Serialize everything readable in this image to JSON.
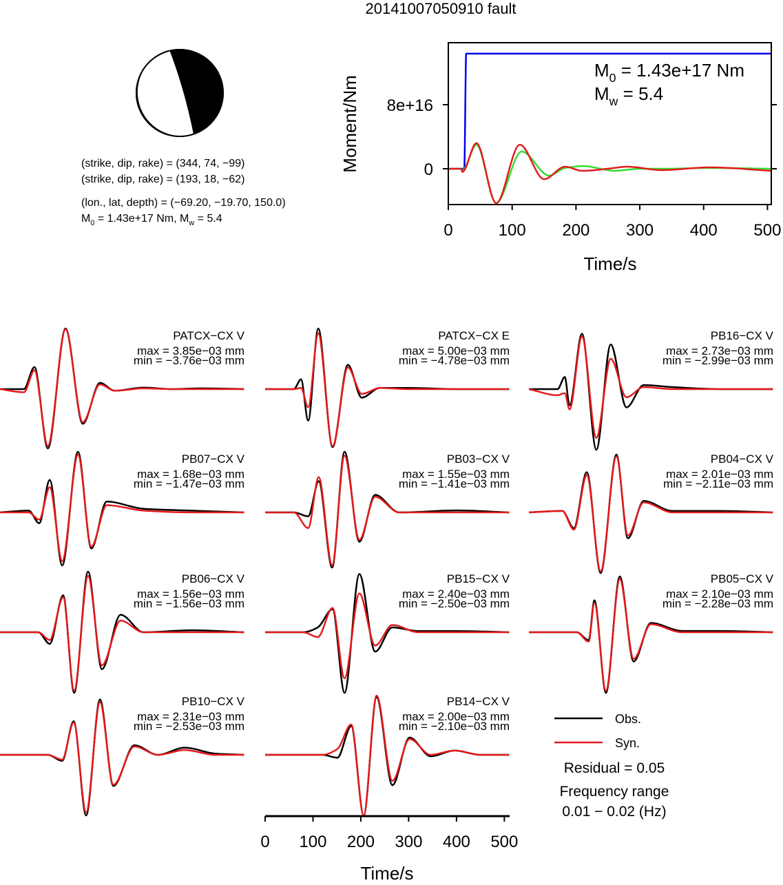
{
  "title": "20141007050910 fault",
  "mechanism": {
    "lines": [
      [
        {
          "text": "(strike, dip, rake) = (344, 74, −99)"
        }
      ],
      [
        {
          "text": "(strike, dip, rake) = (193, 18, −62)"
        }
      ],
      [
        {
          "text": "(lon., lat, depth) = (−69.20, −19.70, 150.0)"
        }
      ],
      [
        {
          "text": "M"
        },
        {
          "sub": "0"
        },
        {
          "text": " = 1.43e+17 Nm, M"
        },
        {
          "sub": "w"
        },
        {
          "text": " = 5.4"
        }
      ]
    ]
  },
  "chart_data": [
    {
      "type": "line",
      "xlabel": "Time/s",
      "ylabel": "Moment/Nm",
      "xlim": [
        0,
        506
      ],
      "ylim": [
        -4.47e+16,
        1.574e+17
      ],
      "xticks": [
        0,
        100,
        200,
        300,
        400,
        500
      ],
      "yticks": [
        0,
        {
          "value": 8e+16,
          "label": "8e+16"
        }
      ],
      "annotations": [
        [
          {
            "text": "M"
          },
          {
            "sub": "0"
          },
          {
            "text": " = 1.43e+17 Nm"
          }
        ],
        [
          {
            "text": "M"
          },
          {
            "sub": "w"
          },
          {
            "text": " = 5.4"
          }
        ]
      ],
      "series": [
        {
          "color": "#0000ee",
          "x": [
            0,
            25,
            28,
            506
          ],
          "values": [
            0,
            0,
            1.437e+17,
            1.437e+17
          ]
        },
        {
          "color": "#33dd33",
          "x": [
            0,
            20,
            22,
            44,
            75,
            115,
            158,
            183,
            212,
            260,
            300,
            334,
            409,
            506
          ],
          "values": [
            0,
            0,
            -2000000000000000.0,
            3e+16,
            -4.3e+16,
            2.15e+16,
            -8600000000000000.0,
            1000000000000000.0,
            3400000000000000.0,
            -2600000000000000.0,
            0,
            0,
            1000000000000000.0,
            0
          ]
        },
        {
          "color": "#e41a1c",
          "x": [
            0,
            20,
            22,
            44,
            75,
            112,
            150,
            183,
            210,
            250,
            280,
            334,
            409,
            506
          ],
          "values": [
            0,
            0,
            -4000000000000000.0,
            3.2e+16,
            -4.3e+16,
            3e+16,
            -1.3e+16,
            2600000000000000.0,
            -2600000000000000.0,
            0,
            2600000000000000.0,
            -1700000000000000.0,
            1700000000000000.0,
            -2600000000000000.0
          ]
        }
      ]
    },
    {
      "type": "waveform",
      "xlabel": "Time/s",
      "xlim": [
        0,
        511
      ],
      "xticks": [
        0,
        100,
        200,
        300,
        400,
        500
      ],
      "legend": [
        {
          "name": "Obs.",
          "color": "#000000"
        },
        {
          "name": "Syn.",
          "color": "#e41a1c"
        }
      ],
      "notes": [
        "Residual = 0.05",
        "Frequency range",
        "0.01 − 0.02 (Hz)"
      ],
      "panels": [
        {
          "station": "PATCX−CX V",
          "max": "max = 3.85e−03 mm",
          "min": "min = −3.76e−03 mm",
          "x": [
            0,
            50,
            72,
            100,
            137,
            173,
            209,
            240,
            300,
            360,
            420,
            510
          ],
          "obs": [
            0,
            0,
            1.4,
            -3.76,
            3.85,
            -2.2,
            0.4,
            -0.1,
            0.1,
            0,
            0.05,
            0
          ],
          "syn": [
            0,
            -0.2,
            1.2,
            -3.6,
            3.8,
            -2.1,
            0.3,
            -0.1,
            0.05,
            0,
            0,
            0
          ]
        },
        {
          "station": "PATCX−CX E",
          "max": "max = 5.00e−03 mm",
          "min": "min = −4.78e−03 mm",
          "x": [
            0,
            60,
            75,
            90,
            111,
            141,
            173,
            202,
            240,
            300,
            400,
            510
          ],
          "obs": [
            0,
            0,
            0.8,
            -2.6,
            5.0,
            -4.78,
            2.0,
            -0.7,
            0.1,
            0.1,
            0,
            0
          ],
          "syn": [
            0,
            0,
            0.1,
            -1.5,
            4.6,
            -4.7,
            1.8,
            -0.4,
            0.1,
            0,
            0,
            0
          ]
        },
        {
          "station": "PB16−CX V",
          "max": "max = 2.73e−03 mm",
          "min": "min = −2.99e−03 mm",
          "x": [
            0,
            60,
            75,
            85,
            111,
            141,
            171,
            204,
            240,
            300,
            400,
            510
          ],
          "obs": [
            0,
            0,
            0.6,
            -0.8,
            2.73,
            -2.99,
            2.2,
            -0.9,
            0.2,
            0.1,
            0,
            0
          ],
          "syn": [
            0,
            -0.3,
            -0.2,
            -1.0,
            2.6,
            -2.4,
            1.5,
            -0.4,
            0.1,
            0,
            0,
            0
          ]
        },
        {
          "station": "PB07−CX V",
          "max": "max = 1.68e−03 mm",
          "min": "min = −1.47e−03 mm",
          "x": [
            0,
            60,
            82,
            104,
            130,
            163,
            191,
            223,
            300,
            400,
            510
          ],
          "obs": [
            0,
            0.05,
            -0.3,
            0.9,
            -1.47,
            1.68,
            -1.0,
            0.3,
            0.1,
            0.05,
            0
          ],
          "syn": [
            0,
            0,
            -0.2,
            0.7,
            -1.35,
            1.6,
            -0.95,
            0.2,
            0.05,
            0,
            0
          ]
        },
        {
          "station": "PB03−CX V",
          "max": "max = 1.55e−03 mm",
          "min": "min = −1.41e−03 mm",
          "x": [
            0,
            60,
            90,
            112,
            140,
            166,
            197,
            230,
            280,
            400,
            510
          ],
          "obs": [
            0,
            0,
            -0.1,
            0.8,
            -1.41,
            1.55,
            -0.75,
            0.45,
            0,
            0.05,
            0
          ],
          "syn": [
            0,
            0,
            -0.4,
            0.9,
            -1.35,
            1.45,
            -0.7,
            0.4,
            0,
            0,
            0
          ]
        },
        {
          "station": "PB04−CX V",
          "max": "max = 2.01e−03 mm",
          "min": "min = −2.11e−03 mm",
          "x": [
            0,
            70,
            94,
            121,
            150,
            183,
            207,
            240,
            300,
            400,
            510
          ],
          "obs": [
            0,
            0.05,
            -0.55,
            1.4,
            -2.11,
            2.01,
            -0.9,
            0.4,
            0.05,
            0.05,
            0
          ],
          "syn": [
            0,
            0.05,
            -0.6,
            1.3,
            -2.05,
            1.95,
            -0.8,
            0.35,
            0,
            0,
            0
          ]
        },
        {
          "station": "PB06−CX V",
          "max": "max = 1.56e−03 mm",
          "min": "min = −1.56e−03 mm",
          "x": [
            0,
            80,
            104,
            132,
            155,
            184,
            213,
            252,
            300,
            400,
            510
          ],
          "obs": [
            0,
            0,
            -0.3,
            0.95,
            -1.56,
            1.56,
            -0.95,
            0.45,
            0,
            0.05,
            0
          ],
          "syn": [
            0,
            0,
            -0.2,
            0.9,
            -1.5,
            1.45,
            -0.85,
            0.3,
            0,
            0,
            0
          ]
        },
        {
          "station": "PB15−CX V",
          "max": "max = 2.40e−03 mm",
          "min": "min = −2.50e−03 mm",
          "x": [
            0,
            80,
            110,
            141,
            166,
            197,
            230,
            266,
            320,
            400,
            510
          ],
          "obs": [
            0,
            0,
            0.2,
            0.95,
            -2.5,
            2.4,
            -0.8,
            0.2,
            0.05,
            0.05,
            0
          ],
          "syn": [
            0,
            0,
            -0.2,
            1.0,
            -1.9,
            1.6,
            -0.55,
            0.3,
            0,
            0,
            0
          ]
        },
        {
          "station": "PB05−CX V",
          "max": "max = 2.10e−03 mm",
          "min": "min = −2.28e−03 mm",
          "x": [
            0,
            100,
            125,
            137,
            161,
            190,
            219,
            255,
            320,
            400,
            510
          ],
          "obs": [
            0,
            0,
            -0.3,
            1.2,
            -2.28,
            2.1,
            -1.1,
            0.35,
            0.05,
            0.05,
            0
          ],
          "syn": [
            0,
            0,
            -0.35,
            1.1,
            -2.2,
            2.0,
            -1.0,
            0.3,
            0,
            0,
            0
          ]
        },
        {
          "station": "PB10−CX V",
          "max": "max = 2.31e−03 mm",
          "min": "min = −2.53e−03 mm",
          "x": [
            0,
            100,
            130,
            154,
            180,
            209,
            237,
            281,
            330,
            386,
            450,
            510
          ],
          "obs": [
            0,
            0,
            -0.25,
            1.4,
            -2.53,
            2.31,
            -1.3,
            0.4,
            0,
            0.3,
            0.05,
            0
          ],
          "syn": [
            0,
            0,
            -0.2,
            1.35,
            -2.4,
            2.2,
            -1.25,
            0.35,
            0,
            0.2,
            0,
            0
          ]
        },
        {
          "station": "PB14−CX V",
          "max": "max = 2.00e−03 mm",
          "min": "min = −2.10e−03 mm",
          "x": [
            0,
            120,
            151,
            180,
            206,
            233,
            266,
            302,
            346,
            396,
            450,
            510
          ],
          "obs": [
            0,
            0,
            -0.1,
            1.0,
            -2.1,
            2.0,
            -1.05,
            0.6,
            -0.05,
            0.15,
            0,
            0
          ],
          "syn": [
            0,
            0,
            0.2,
            1.05,
            -2.1,
            2.05,
            -0.9,
            0.55,
            0,
            0.15,
            0,
            0
          ]
        }
      ]
    }
  ]
}
